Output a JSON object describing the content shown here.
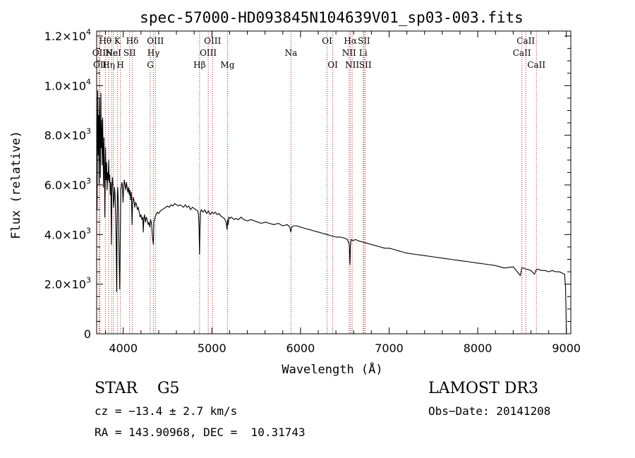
{
  "chart_data": {
    "type": "line",
    "title": "spec-57000-HD093845N104639V01_sp03-003.fits",
    "xlabel": "Wavelength (Å)",
    "ylabel": "Flux (relative)",
    "xlim": [
      3700,
      9050
    ],
    "ylim": [
      0,
      12200
    ],
    "x_ticks": [
      4000,
      5000,
      6000,
      7000,
      8000,
      9000
    ],
    "x_tick_labels": [
      "4000",
      "5000",
      "6000",
      "7000",
      "8000",
      "9000"
    ],
    "y_ticks": [
      {
        "value": 0,
        "mant": "0",
        "exp": ""
      },
      {
        "value": 2000,
        "mant": "2.0×10",
        "exp": "3"
      },
      {
        "value": 4000,
        "mant": "4.0×10",
        "exp": "3"
      },
      {
        "value": 6000,
        "mant": "6.0×10",
        "exp": "3"
      },
      {
        "value": 8000,
        "mant": "8.0×10",
        "exp": "3"
      },
      {
        "value": 10000,
        "mant": "1.0×10",
        "exp": "4"
      },
      {
        "value": 12000,
        "mant": "1.2×10",
        "exp": "4"
      }
    ],
    "series": [
      {
        "x": [
          3700,
          3705,
          3712,
          3718,
          3722,
          3728,
          3733,
          3738,
          3742,
          3748,
          3752,
          3756,
          3762,
          3768,
          3772,
          3778,
          3782,
          3788,
          3792,
          3798,
          3800,
          3806,
          3812,
          3818,
          3824,
          3830,
          3836,
          3842,
          3848,
          3854,
          3860,
          3866,
          3872,
          3878,
          3884,
          3890,
          3896,
          3902,
          3908,
          3914,
          3920,
          3926,
          3930,
          3934,
          3938,
          3942,
          3948,
          3954,
          3960,
          3964,
          3968,
          3972,
          3978,
          3984,
          3990,
          3998,
          4005,
          4012,
          4020,
          4028,
          4036,
          4044,
          4052,
          4060,
          4068,
          4076,
          4084,
          4092,
          4100,
          4105,
          4112,
          4120,
          4130,
          4140,
          4150,
          4160,
          4170,
          4180,
          4190,
          4200,
          4210,
          4220,
          4226,
          4232,
          4240,
          4250,
          4260,
          4270,
          4280,
          4290,
          4300,
          4310,
          4320,
          4330,
          4340,
          4345,
          4352,
          4360,
          4370,
          4385,
          4400,
          4420,
          4440,
          4460,
          4480,
          4500,
          4520,
          4540,
          4560,
          4580,
          4600,
          4620,
          4640,
          4660,
          4680,
          4700,
          4720,
          4740,
          4760,
          4780,
          4800,
          4820,
          4840,
          4850,
          4856,
          4861,
          4866,
          4872,
          4880,
          4900,
          4920,
          4940,
          4960,
          4980,
          5000,
          5020,
          5040,
          5060,
          5080,
          5100,
          5120,
          5140,
          5160,
          5172,
          5178,
          5184,
          5192,
          5200,
          5220,
          5250,
          5270,
          5300,
          5330,
          5360,
          5400,
          5440,
          5480,
          5520,
          5560,
          5600,
          5650,
          5700,
          5750,
          5800,
          5850,
          5880,
          5890,
          5896,
          5902,
          5920,
          5960,
          6000,
          6050,
          6100,
          6150,
          6200,
          6250,
          6300,
          6350,
          6400,
          6450,
          6500,
          6530,
          6550,
          6558,
          6563,
          6568,
          6575,
          6590,
          6620,
          6650,
          6700,
          6750,
          6800,
          6850,
          6900,
          6950,
          7000,
          7050,
          7100,
          7150,
          7200,
          7300,
          7400,
          7500,
          7600,
          7700,
          7800,
          7900,
          8000,
          8100,
          8200,
          8300,
          8400,
          8480,
          8498,
          8520,
          8542,
          8560,
          8600,
          8640,
          8662,
          8680,
          8720,
          8760,
          8800,
          8840,
          8880,
          8920,
          8950,
          8980,
          8990,
          8996,
          9000
        ],
        "y": [
          9500,
          5000,
          9800,
          7200,
          8800,
          6000,
          9500,
          8000,
          6300,
          9700,
          7500,
          8600,
          6800,
          8700,
          7600,
          5900,
          7900,
          6700,
          4700,
          6600,
          7500,
          6200,
          6900,
          5800,
          6500,
          6200,
          7000,
          6100,
          6400,
          5600,
          6100,
          3600,
          5900,
          6300,
          6000,
          5100,
          5400,
          5900,
          5600,
          4700,
          3800,
          1700,
          4400,
          5700,
          5900,
          5500,
          4400,
          3000,
          1800,
          3100,
          4300,
          5800,
          5900,
          6100,
          6000,
          5300,
          5900,
          6200,
          6000,
          5800,
          6100,
          5900,
          5700,
          5900,
          5600,
          5800,
          5400,
          5700,
          4400,
          5200,
          5500,
          5400,
          5100,
          5300,
          5200,
          5000,
          5100,
          4900,
          4700,
          4800,
          4600,
          4700,
          4100,
          4600,
          4800,
          4500,
          4700,
          4600,
          4400,
          4500,
          4300,
          4600,
          4400,
          3900,
          3600,
          4500,
          4600,
          4700,
          4800,
          4900,
          4850,
          4950,
          5000,
          5050,
          5100,
          5150,
          5100,
          5200,
          5150,
          5250,
          5200,
          5150,
          5200,
          5150,
          5100,
          5200,
          5100,
          5150,
          5000,
          5100,
          5050,
          5000,
          4950,
          4800,
          4200,
          3200,
          4300,
          4900,
          5000,
          4900,
          5000,
          4850,
          4950,
          4800,
          4900,
          4850,
          4900,
          4800,
          4850,
          4750,
          4700,
          4650,
          4500,
          4200,
          4600,
          4400,
          4700,
          4650,
          4700,
          4600,
          4650,
          4600,
          4700,
          4600,
          4550,
          4600,
          4550,
          4500,
          4450,
          4500,
          4450,
          4400,
          4450,
          4350,
          4400,
          4300,
          4100,
          4200,
          4300,
          4350,
          4350,
          4300,
          4250,
          4200,
          4150,
          4100,
          4050,
          4000,
          3950,
          3900,
          3900,
          3850,
          3800,
          3600,
          2800,
          3500,
          3750,
          3800,
          3750,
          3800,
          3750,
          3700,
          3650,
          3600,
          3550,
          3500,
          3450,
          3450,
          3400,
          3350,
          3300,
          3250,
          3200,
          3150,
          3100,
          3050,
          3000,
          2950,
          2900,
          2850,
          2800,
          2750,
          2650,
          2700,
          2350,
          2650,
          2650,
          2600,
          2600,
          2550,
          2400,
          2600,
          2600,
          2550,
          2550,
          2500,
          2550,
          2500,
          2500,
          2450,
          2400,
          1900,
          1000,
          0
        ]
      }
    ],
    "lines": [
      {
        "wave": 3727,
        "row": 2,
        "label": "OII"
      },
      {
        "wave": 3737,
        "row": 3,
        "label": "OII"
      },
      {
        "wave": 3798,
        "row": 1,
        "label": "Hθ"
      },
      {
        "wave": 3835,
        "row": 3,
        "label": "Hη"
      },
      {
        "wave": 3869,
        "row": 2,
        "label": "Ne"
      },
      {
        "wave": 3889,
        "row": 2,
        "label": "HeI"
      },
      {
        "wave": 3934,
        "row": 1,
        "label": "K"
      },
      {
        "wave": 3968,
        "row": 3,
        "label": "H"
      },
      {
        "wave": 4072,
        "row": 2,
        "label": "SII"
      },
      {
        "wave": 4102,
        "row": 1,
        "label": "Hδ"
      },
      {
        "wave": 4305,
        "row": 3,
        "label": "G"
      },
      {
        "wave": 4341,
        "row": 2,
        "label": "Hγ"
      },
      {
        "wave": 4363,
        "row": 1,
        "label": "OIII"
      },
      {
        "wave": 4861,
        "row": 3,
        "label": "Hβ"
      },
      {
        "wave": 4959,
        "row": 2,
        "label": "OIII"
      },
      {
        "wave": 5007,
        "row": 1,
        "label": "OIII"
      },
      {
        "wave": 5176,
        "row": 3,
        "label": "Mg"
      },
      {
        "wave": 5893,
        "row": 2,
        "label": "Na"
      },
      {
        "wave": 6300,
        "row": 1,
        "label": "OI"
      },
      {
        "wave": 6364,
        "row": 3,
        "label": "OI"
      },
      {
        "wave": 6548,
        "row": 2,
        "label": "NII"
      },
      {
        "wave": 6563,
        "row": 1,
        "label": "Hα"
      },
      {
        "wave": 6583,
        "row": 3,
        "label": "NII"
      },
      {
        "wave": 6708,
        "row": 2,
        "label": "Li"
      },
      {
        "wave": 6716,
        "row": 1,
        "label": "SII"
      },
      {
        "wave": 6731,
        "row": 3,
        "label": "SII"
      },
      {
        "wave": 8498,
        "row": 2,
        "label": "CaII"
      },
      {
        "wave": 8542,
        "row": 1,
        "label": "CaII"
      },
      {
        "wave": 8662,
        "row": 3,
        "label": "CaII"
      }
    ]
  },
  "info": {
    "class_line": "STAR    G5",
    "survey": "LAMOST DR3",
    "cz": "cz = −13.4 ± 2.7 km/s",
    "obs_date": "Obs−Date: 20141208",
    "radec": "RA = 143.90968, DEC =  10.31743"
  }
}
